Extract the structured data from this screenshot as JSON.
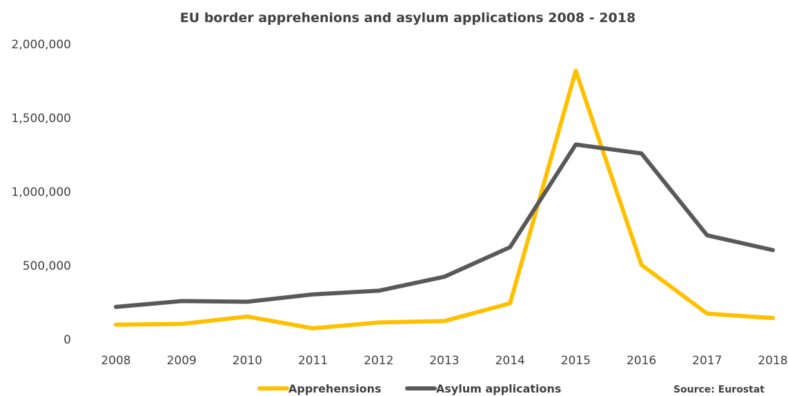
{
  "chart_data": {
    "type": "line",
    "title": "EU border apprehenions and asylum applications 2008 -  2018",
    "xlabel": "",
    "ylabel": "",
    "categories": [
      "2008",
      "2009",
      "2010",
      "2011",
      "2012",
      "2013",
      "2014",
      "2015",
      "2016",
      "2017",
      "2018"
    ],
    "ylim": [
      0,
      2000000
    ],
    "yticks": [
      0,
      500000,
      1000000,
      1500000,
      2000000
    ],
    "ytick_labels": [
      "0",
      "500,000",
      "1,000,000",
      "1,500,000",
      "2,000,000"
    ],
    "grid": false,
    "legend_position": "bottom",
    "series": [
      {
        "name": "Apprehensions",
        "color": "#FFC000",
        "values": [
          100000,
          105000,
          155000,
          75000,
          115000,
          125000,
          245000,
          1820000,
          505000,
          175000,
          145000
        ]
      },
      {
        "name": "Asylum applications",
        "color": "#595959",
        "values": [
          220000,
          260000,
          255000,
          305000,
          330000,
          425000,
          625000,
          1320000,
          1260000,
          705000,
          605000
        ]
      }
    ],
    "annotation": "Source: Eurostat"
  }
}
